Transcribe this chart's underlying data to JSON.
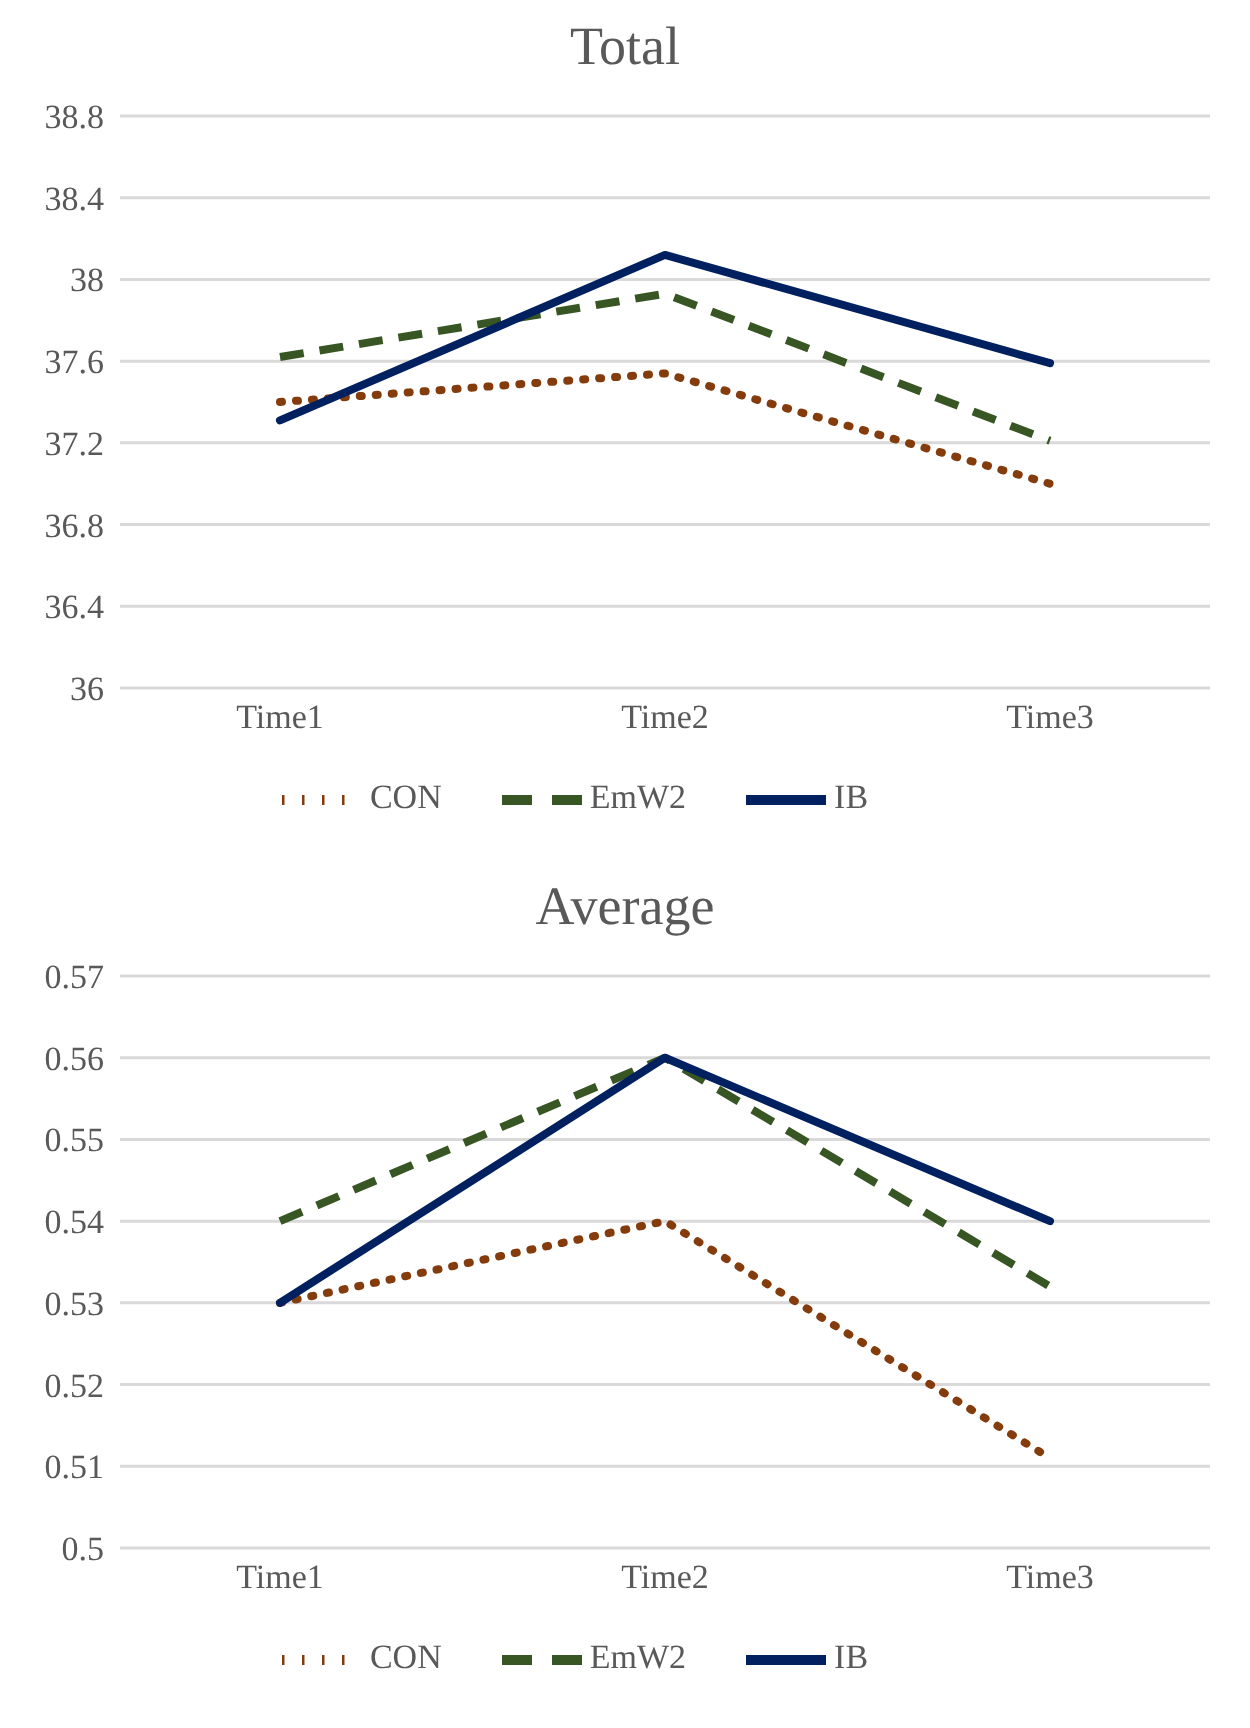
{
  "chart_data": [
    {
      "type": "line",
      "title": "Total",
      "categories": [
        "Time1",
        "Time2",
        "Time3"
      ],
      "series": [
        {
          "name": "CON",
          "color": "#843c0c",
          "line_style": "dotted",
          "values": [
            37.4,
            37.54,
            37.0
          ]
        },
        {
          "name": "EmW2",
          "color": "#375623",
          "line_style": "dashed",
          "values": [
            37.62,
            37.93,
            37.21
          ]
        },
        {
          "name": "IB",
          "color": "#002060",
          "line_style": "solid",
          "values": [
            37.31,
            38.12,
            37.59
          ]
        }
      ],
      "ylim": [
        36,
        38.8
      ],
      "yticks": [
        36,
        36.4,
        36.8,
        37.2,
        37.6,
        38,
        38.4,
        38.8
      ],
      "grid": "y",
      "legend": "bottom",
      "marker": "none"
    },
    {
      "type": "line",
      "title": "Average",
      "categories": [
        "Time1",
        "Time2",
        "Time3"
      ],
      "series": [
        {
          "name": "CON",
          "color": "#843c0c",
          "line_style": "dotted",
          "values": [
            0.53,
            0.54,
            0.511
          ]
        },
        {
          "name": "EmW2",
          "color": "#375623",
          "line_style": "dashed",
          "values": [
            0.54,
            0.56,
            0.532
          ]
        },
        {
          "name": "IB",
          "color": "#002060",
          "line_style": "solid",
          "values": [
            0.53,
            0.56,
            0.54
          ]
        }
      ],
      "ylim": [
        0.5,
        0.57
      ],
      "yticks": [
        0.5,
        0.51,
        0.52,
        0.53,
        0.54,
        0.55,
        0.56,
        0.57
      ],
      "grid": "y",
      "legend": "bottom",
      "marker": "none"
    }
  ]
}
